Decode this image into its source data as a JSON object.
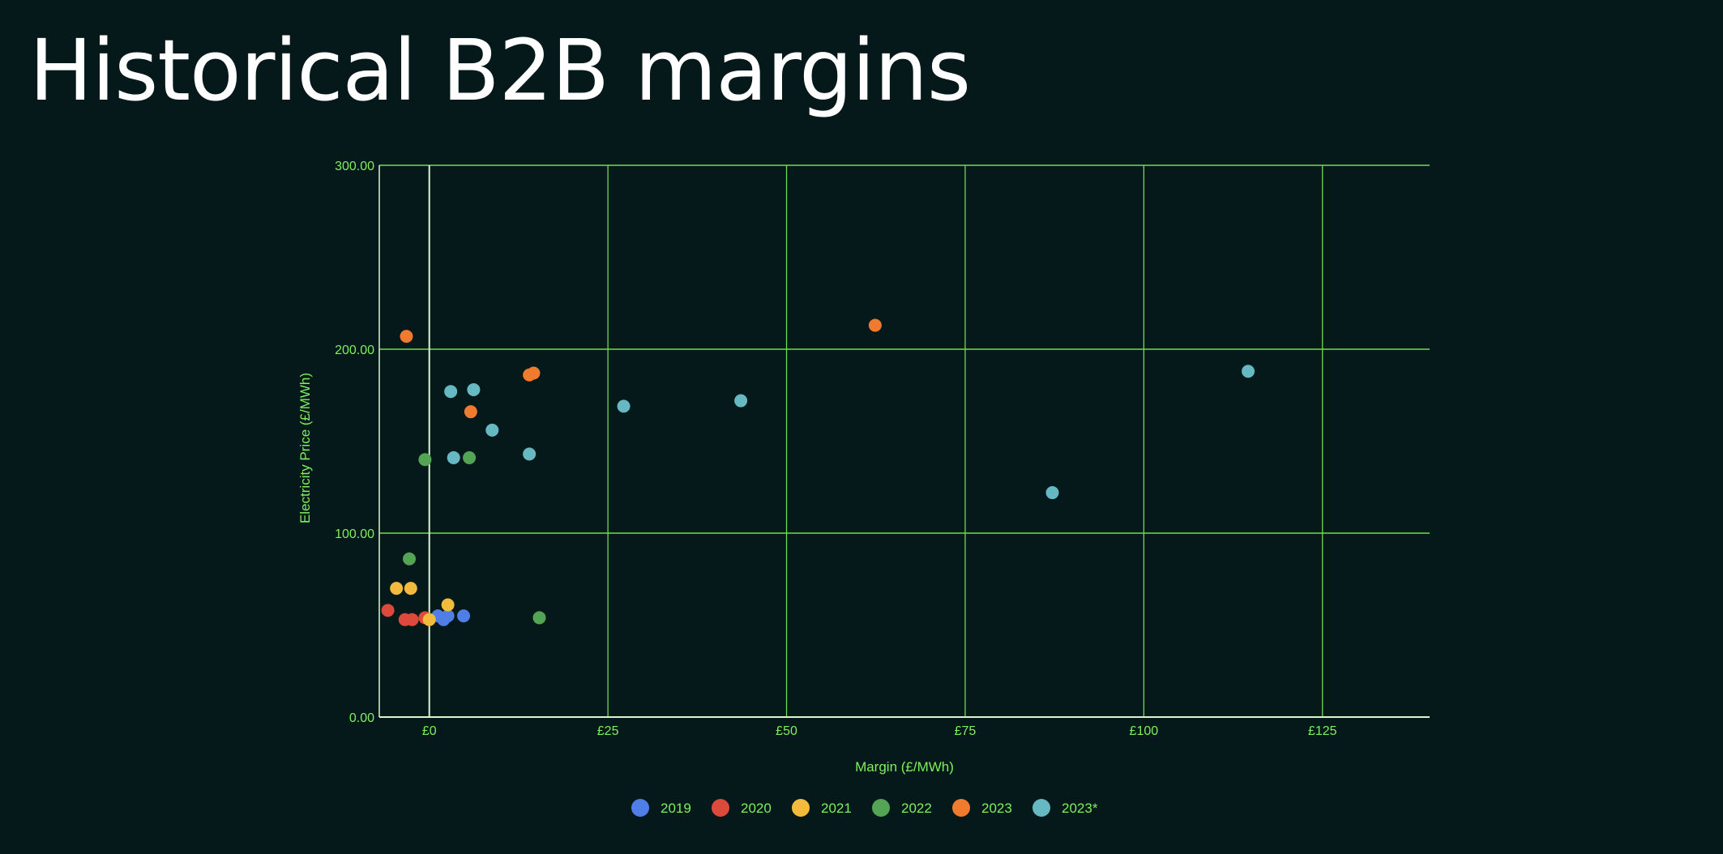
{
  "title": "Historical B2B margins",
  "chart_data": {
    "type": "scatter",
    "xlabel": "Margin (£/MWh)",
    "ylabel": "Electricity Price (£/MWh)",
    "xlim": [
      -7,
      140
    ],
    "ylim": [
      0,
      300
    ],
    "x_ticks": [
      0,
      25,
      50,
      75,
      100,
      125
    ],
    "x_tick_labels": [
      "£0",
      "£25",
      "£50",
      "£75",
      "£100",
      "£125"
    ],
    "y_ticks": [
      0,
      100,
      200,
      300
    ],
    "y_tick_labels": [
      "0.00",
      "100.00",
      "200.00",
      "300.00"
    ],
    "grid": true,
    "legend_position": "bottom",
    "series": [
      {
        "name": "2019",
        "color": "#4f7fe6",
        "points": [
          [
            1.2,
            55
          ],
          [
            2.0,
            53
          ],
          [
            2.6,
            55
          ],
          [
            4.8,
            55
          ]
        ]
      },
      {
        "name": "2020",
        "color": "#db4a3a",
        "points": [
          [
            -5.8,
            58
          ],
          [
            -3.4,
            53
          ],
          [
            -2.4,
            53
          ],
          [
            -0.6,
            54
          ]
        ]
      },
      {
        "name": "2021",
        "color": "#f3bb3b",
        "points": [
          [
            -4.6,
            70
          ],
          [
            -2.6,
            70
          ],
          [
            2.6,
            61
          ],
          [
            0.0,
            53
          ]
        ]
      },
      {
        "name": "2022",
        "color": "#53a455",
        "points": [
          [
            -2.8,
            86
          ],
          [
            -0.6,
            140
          ],
          [
            5.6,
            141
          ],
          [
            15.4,
            54
          ]
        ]
      },
      {
        "name": "2023",
        "color": "#f07a2e",
        "points": [
          [
            -3.2,
            207
          ],
          [
            5.8,
            166
          ],
          [
            14.0,
            186
          ],
          [
            14.6,
            187
          ],
          [
            62.4,
            213
          ]
        ]
      },
      {
        "name": "2023*",
        "color": "#66b9c2",
        "points": [
          [
            3.0,
            177
          ],
          [
            3.4,
            141
          ],
          [
            6.2,
            178
          ],
          [
            8.8,
            156
          ],
          [
            14.0,
            143
          ],
          [
            27.2,
            169
          ],
          [
            43.6,
            172
          ],
          [
            87.2,
            122
          ],
          [
            114.6,
            188
          ]
        ]
      }
    ]
  }
}
